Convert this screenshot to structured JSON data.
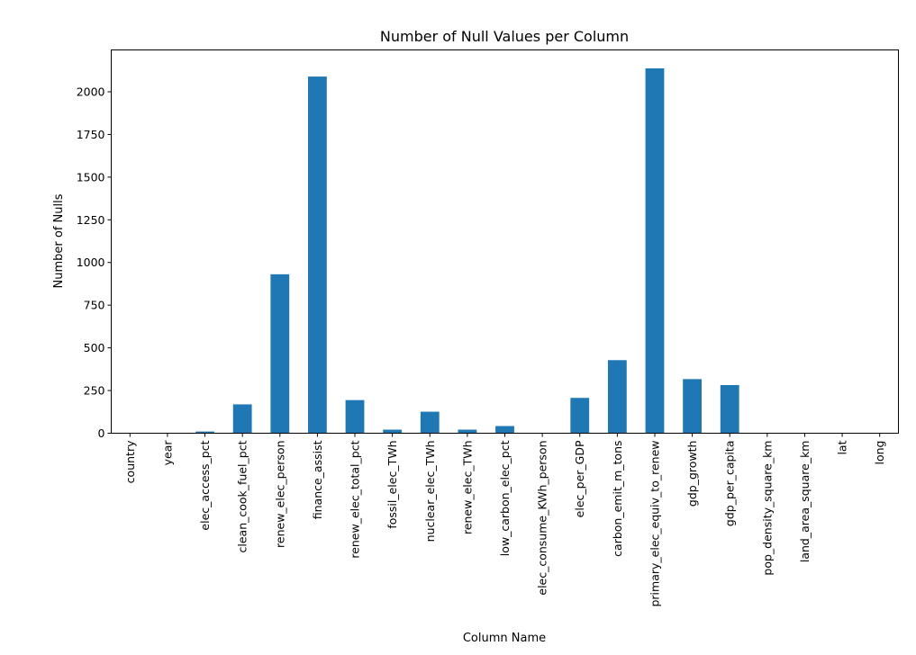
{
  "chart_data": {
    "type": "bar",
    "title": "Number of Null Values per Column",
    "xlabel": "Column Name",
    "ylabel": "Number of Nulls",
    "ylim": [
      0,
      2245
    ],
    "yticks": [
      0,
      250,
      500,
      750,
      1000,
      1250,
      1500,
      1750,
      2000
    ],
    "ytick_labels": [
      "0",
      "250",
      "500",
      "750",
      "1000",
      "1250",
      "1500",
      "1750",
      "2000"
    ],
    "grid": false,
    "legend": "none",
    "bar_color": "#1f77b4",
    "categories": [
      "country",
      "year",
      "elec_access_pct",
      "clean_cook_fuel_pct",
      "renew_elec_person",
      "finance_assist",
      "renew_elec_total_pct",
      "fossil_elec_TWh",
      "nuclear_elec_TWh",
      "renew_elec_TWh",
      "low_carbon_elec_pct",
      "elec_consume_KWh_person",
      "elec_per_GDP",
      "carbon_emit_m_tons",
      "primary_elec_equiv_to_renew",
      "gdp_growth",
      "gdp_per_capita",
      "pop_density_square_km",
      "land_area_square_km",
      "lat",
      "long"
    ],
    "values": [
      0,
      0,
      10,
      169,
      931,
      2089,
      194,
      21,
      126,
      21,
      42,
      0,
      207,
      428,
      2137,
      317,
      282,
      1,
      1,
      1,
      1
    ]
  }
}
